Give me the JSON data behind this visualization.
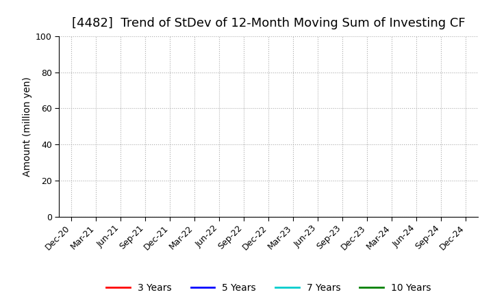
{
  "title": "[4482]  Trend of StDev of 12-Month Moving Sum of Investing CF",
  "ylabel": "Amount (million yen)",
  "ylim": [
    0,
    100
  ],
  "yticks": [
    0,
    20,
    40,
    60,
    80,
    100
  ],
  "x_labels": [
    "Dec-20",
    "Mar-21",
    "Jun-21",
    "Sep-21",
    "Dec-21",
    "Mar-22",
    "Jun-22",
    "Sep-22",
    "Dec-22",
    "Mar-23",
    "Jun-23",
    "Sep-23",
    "Dec-23",
    "Mar-24",
    "Jun-24",
    "Sep-24",
    "Dec-24"
  ],
  "legend_entries": [
    {
      "label": "3 Years",
      "color": "#ff0000",
      "linestyle": "-"
    },
    {
      "label": "5 Years",
      "color": "#0000ff",
      "linestyle": "-"
    },
    {
      "label": "7 Years",
      "color": "#00cccc",
      "linestyle": "-"
    },
    {
      "label": "10 Years",
      "color": "#008000",
      "linestyle": "-"
    }
  ],
  "background_color": "#ffffff",
  "grid_color": "#aaaaaa",
  "title_fontsize": 13,
  "title_fontweight": "normal",
  "label_fontsize": 10,
  "tick_fontsize": 9
}
